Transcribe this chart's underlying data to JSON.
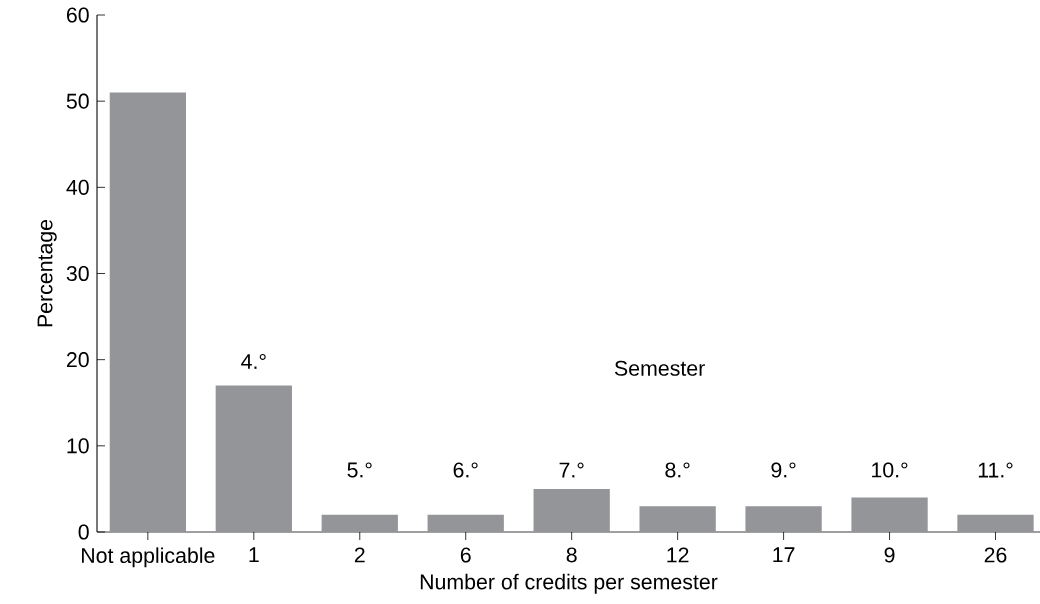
{
  "chart_data": {
    "type": "bar",
    "xlabel": "Number of credits per semester",
    "ylabel": "Percentage",
    "categories": [
      "Not applicable",
      "1",
      "2",
      "6",
      "8",
      "12",
      "17",
      "9",
      "26"
    ],
    "values": [
      51,
      17,
      2,
      2,
      5,
      3,
      3,
      4,
      2
    ],
    "color": "#939598",
    "ylim": [
      0,
      60
    ],
    "yticks": [
      0,
      10,
      20,
      30,
      40,
      50,
      60
    ],
    "annotations": [
      "4.°",
      "5.°",
      "6.°",
      "7.°",
      "8.°",
      "9.°",
      "10.°",
      "11.°",
      "Semester"
    ]
  }
}
